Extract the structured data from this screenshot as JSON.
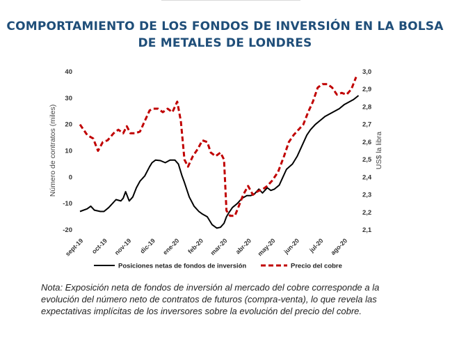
{
  "title": "COMPORTAMIENTO DE LOS FONDOS DE INVERSIÓN EN LA BOLSA DE METALES DE LONDRES",
  "note": "Nota: Exposición neta de fondos de inversión al mercado del cobre corresponde a la evolución del número neto de contratos de futuros (compra-venta), lo que revela las expectativas implícitas de los inversores sobre la evolución del precio del cobre.",
  "chart_data": {
    "type": "line",
    "title": "COMPORTAMIENTO DE LOS FONDOS DE INVERSIÓN EN LA BOLSA DE METALES DE LONDRES",
    "ylabel": "Número de contratos (miles)",
    "y2label": "US$ la libra",
    "ylim": [
      -20,
      40
    ],
    "y2lim": [
      2.1,
      3.0
    ],
    "yticks": [
      "40",
      "30",
      "20",
      "10",
      "0",
      "-10",
      "-20"
    ],
    "y2ticks": [
      "3,0",
      "2,9",
      "2,8",
      "2,7",
      "2,6",
      "2,5",
      "2,4",
      "2,3",
      "2,2",
      "2,1"
    ],
    "categories": [
      "sept-19",
      "oct-19",
      "nov-19",
      "dic-19",
      "ene-20",
      "feb-20",
      "mar-20",
      "abr-20",
      "may-20",
      "jun-20",
      "jul-20",
      "ago-20"
    ],
    "grid": false,
    "legend_position": "bottom",
    "series": [
      {
        "name": "Posiciones netas de fondos de inversión",
        "axis": "left",
        "color": "#000000",
        "style": "solid",
        "x": [
          0,
          0.3,
          0.45,
          0.6,
          0.85,
          1.0,
          1.2,
          1.5,
          1.7,
          1.8,
          1.9,
          2.05,
          2.2,
          2.35,
          2.5,
          2.7,
          2.9,
          3.0,
          3.15,
          3.35,
          3.55,
          3.75,
          3.95,
          4.1,
          4.25,
          4.35,
          4.55,
          4.75,
          4.95,
          5.1,
          5.3,
          5.5,
          5.7,
          5.85,
          6.0,
          6.1,
          6.2,
          6.35,
          6.55,
          6.75,
          6.95,
          7.1,
          7.25,
          7.45,
          7.6,
          7.8,
          7.95,
          8.1,
          8.3,
          8.45,
          8.6,
          8.85,
          9.05,
          9.25,
          9.45,
          9.6,
          9.8,
          10.0,
          10.2,
          10.4,
          10.6,
          10.8,
          11.0,
          11.2,
          11.4,
          11.6
        ],
        "y": [
          -13,
          -12,
          -11,
          -12.5,
          -13,
          -13,
          -11.5,
          -8.5,
          -9,
          -8,
          -5.5,
          -9,
          -7.5,
          -4,
          -1.5,
          0.5,
          4,
          5.5,
          6.5,
          6.3,
          5.5,
          6.5,
          6.5,
          5,
          0.5,
          -2,
          -7.5,
          -11,
          -13,
          -14,
          -15,
          -18,
          -19.3,
          -19,
          -17.5,
          -15,
          -13.5,
          -11.5,
          -10,
          -8,
          -7,
          -7,
          -6.5,
          -4.5,
          -6,
          -4,
          -5,
          -4.5,
          -3,
          0,
          3,
          5,
          8,
          12,
          16,
          18,
          20,
          21.5,
          23,
          24,
          25,
          26,
          27.5,
          28.5,
          29.5,
          31
        ]
      },
      {
        "name": "Precio del cobre",
        "axis": "right",
        "color": "#c00000",
        "style": "dashed",
        "x": [
          0,
          0.3,
          0.55,
          0.75,
          0.95,
          1.15,
          1.4,
          1.6,
          1.8,
          1.95,
          2.1,
          2.3,
          2.5,
          2.7,
          2.9,
          3.05,
          3.25,
          3.45,
          3.65,
          3.85,
          4.05,
          4.2,
          4.35,
          4.5,
          4.7,
          4.9,
          5.1,
          5.3,
          5.45,
          5.65,
          5.85,
          6.0,
          6.1,
          6.25,
          6.45,
          6.6,
          6.8,
          7.0,
          7.2,
          7.4,
          7.6,
          7.8,
          8.0,
          8.25,
          8.5,
          8.7,
          8.9,
          9.1,
          9.3,
          9.5,
          9.7,
          9.9,
          10.1,
          10.3,
          10.5,
          10.7,
          10.9,
          11.1,
          11.3,
          11.5
        ],
        "y": [
          2.7,
          2.64,
          2.62,
          2.55,
          2.6,
          2.61,
          2.65,
          2.67,
          2.65,
          2.69,
          2.65,
          2.65,
          2.66,
          2.72,
          2.78,
          2.79,
          2.79,
          2.77,
          2.79,
          2.77,
          2.83,
          2.72,
          2.5,
          2.46,
          2.52,
          2.56,
          2.61,
          2.6,
          2.54,
          2.52,
          2.54,
          2.5,
          2.21,
          2.18,
          2.18,
          2.23,
          2.3,
          2.35,
          2.3,
          2.32,
          2.33,
          2.35,
          2.38,
          2.43,
          2.52,
          2.6,
          2.64,
          2.67,
          2.7,
          2.77,
          2.83,
          2.91,
          2.93,
          2.93,
          2.91,
          2.87,
          2.88,
          2.87,
          2.9,
          2.97
        ]
      }
    ]
  }
}
